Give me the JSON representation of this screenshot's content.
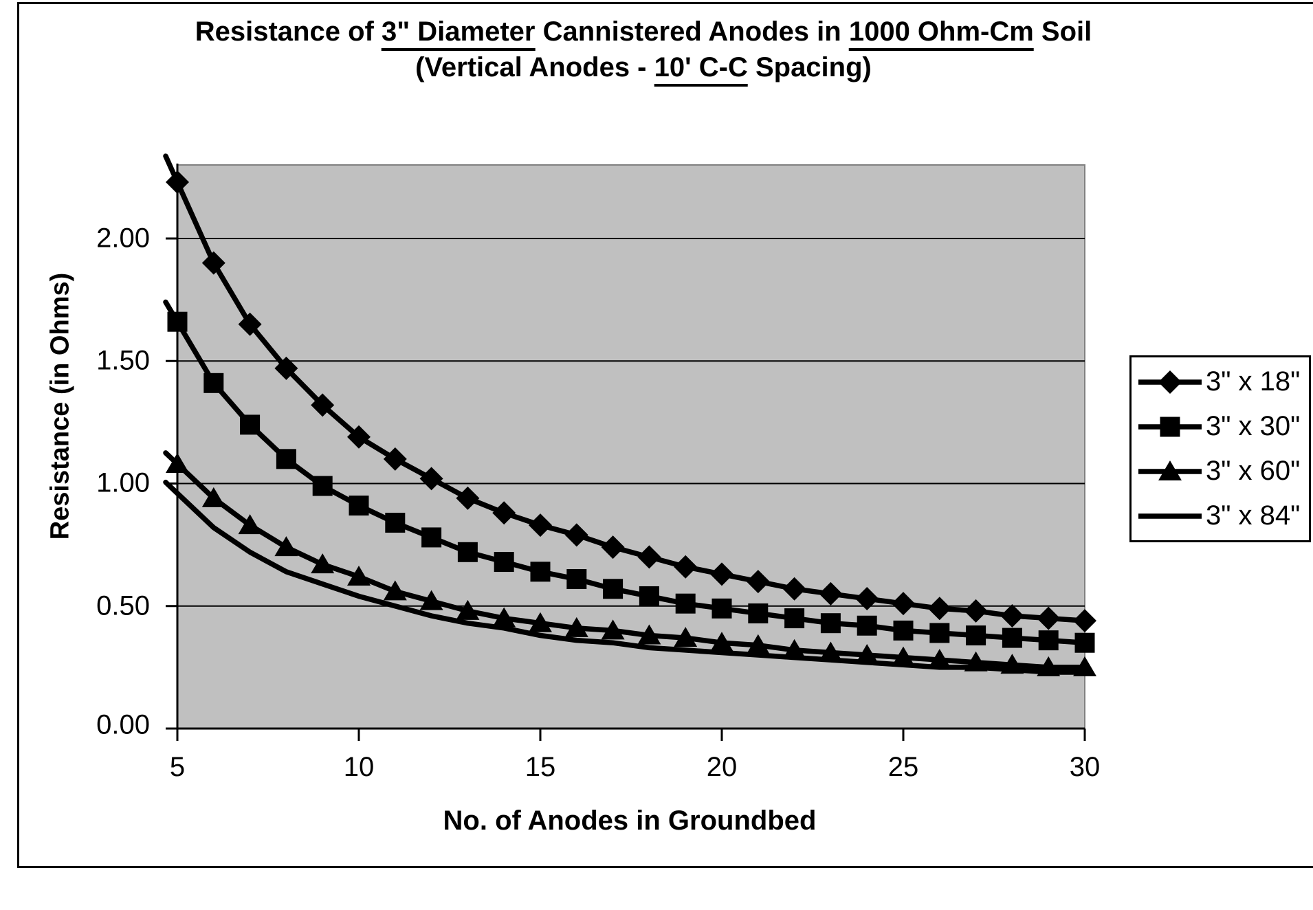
{
  "chart_data": {
    "type": "line",
    "title": {
      "line1_parts": [
        {
          "text": "Resistance of ",
          "underline": false
        },
        {
          "text": "3\" Diameter",
          "underline": true
        },
        {
          "text": " Cannistered Anodes in ",
          "underline": false
        },
        {
          "text": "1000 Ohm-Cm",
          "underline": true
        },
        {
          "text": " Soil",
          "underline": false
        }
      ],
      "line2_parts": [
        {
          "text": "(Vertical Anodes - ",
          "underline": false
        },
        {
          "text": "10' C-C",
          "underline": true
        },
        {
          "text": " Spacing)",
          "underline": false
        }
      ]
    },
    "xlabel": "No. of Anodes in Groundbed",
    "ylabel": "Resistance (in Ohms)",
    "x": [
      5,
      6,
      7,
      8,
      9,
      10,
      11,
      12,
      13,
      14,
      15,
      16,
      17,
      18,
      19,
      20,
      21,
      22,
      23,
      24,
      25,
      26,
      27,
      28,
      29,
      30
    ],
    "series": [
      {
        "name": "3\" x 18\"",
        "marker": "diamond",
        "values": [
          2.23,
          1.9,
          1.65,
          1.47,
          1.32,
          1.19,
          1.1,
          1.02,
          0.94,
          0.88,
          0.83,
          0.79,
          0.74,
          0.7,
          0.66,
          0.63,
          0.6,
          0.57,
          0.55,
          0.53,
          0.51,
          0.49,
          0.48,
          0.46,
          0.45,
          0.44
        ]
      },
      {
        "name": "3\" x 30\"",
        "marker": "square",
        "values": [
          1.66,
          1.41,
          1.24,
          1.1,
          0.99,
          0.91,
          0.84,
          0.78,
          0.72,
          0.68,
          0.64,
          0.61,
          0.57,
          0.54,
          0.51,
          0.49,
          0.47,
          0.45,
          0.43,
          0.42,
          0.4,
          0.39,
          0.38,
          0.37,
          0.36,
          0.35
        ]
      },
      {
        "name": "3\" x 60\"",
        "marker": "triangle",
        "values": [
          1.08,
          0.94,
          0.83,
          0.74,
          0.67,
          0.62,
          0.56,
          0.52,
          0.48,
          0.45,
          0.43,
          0.41,
          0.4,
          0.38,
          0.37,
          0.35,
          0.34,
          0.32,
          0.31,
          0.3,
          0.29,
          0.28,
          0.27,
          0.26,
          0.25,
          0.25
        ]
      },
      {
        "name": "3\" x 84\"",
        "marker": "none",
        "values": [
          0.96,
          0.82,
          0.72,
          0.64,
          0.59,
          0.54,
          0.5,
          0.46,
          0.43,
          0.41,
          0.38,
          0.36,
          0.35,
          0.33,
          0.32,
          0.31,
          0.3,
          0.29,
          0.28,
          0.27,
          0.26,
          0.25,
          0.25,
          0.24,
          0.23,
          0.23
        ]
      }
    ],
    "xlim": [
      5,
      30
    ],
    "ylim": [
      0,
      2.3
    ],
    "x_ticks": [
      5,
      10,
      15,
      20,
      25,
      30
    ],
    "x_tick_labels": [
      "5",
      "10",
      "15",
      "20",
      "25",
      "30"
    ],
    "y_ticks": [
      0,
      0.5,
      1.0,
      1.5,
      2.0
    ],
    "y_tick_labels": [
      "0.00",
      "0.50",
      "1.00",
      "1.50",
      "2.00"
    ],
    "gridlines": [
      0.5,
      1.0,
      1.5,
      2.0
    ],
    "legend_position": "right",
    "grid_on": true,
    "colors": {
      "series": "#000000",
      "plot_bg": "#c0c0c0",
      "chart_bg": "#ffffff",
      "gridline": "#000000",
      "plot_border": "#808080"
    }
  }
}
